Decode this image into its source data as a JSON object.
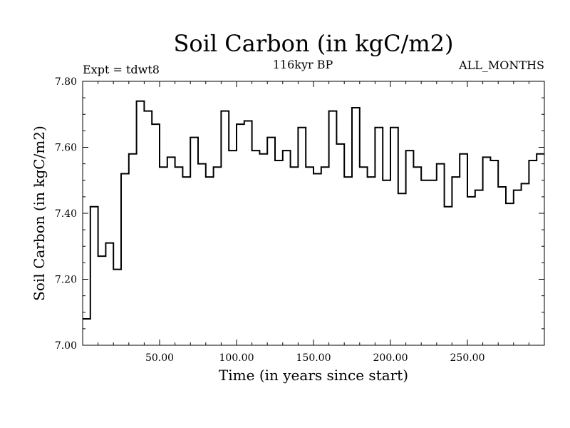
{
  "chart_data": {
    "type": "line",
    "title": "Soil Carbon (in kgC/m2)",
    "subtitle": "116kyr BP",
    "experiment_label": "Expt = tdwt8",
    "months_label": "ALL_MONTHS",
    "xlabel": "Time (in years since start)",
    "ylabel": "Soil Carbon (in kgC/m2)",
    "xlim": [
      0,
      300
    ],
    "ylim": [
      7.0,
      7.8
    ],
    "x_ticks": [
      50,
      100,
      150,
      200,
      250
    ],
    "x_tick_labels": [
      "50.00",
      "100.00",
      "150.00",
      "200.00",
      "250.00"
    ],
    "y_ticks": [
      7.0,
      7.2,
      7.4,
      7.6,
      7.8
    ],
    "y_tick_labels": [
      "7.00",
      "7.20",
      "7.40",
      "7.60",
      "7.80"
    ],
    "series": [
      {
        "name": "Soil Carbon",
        "step_width_years": 5,
        "x_start": 0,
        "values": [
          7.08,
          7.42,
          7.27,
          7.31,
          7.23,
          7.52,
          7.58,
          7.74,
          7.71,
          7.67,
          7.54,
          7.57,
          7.54,
          7.51,
          7.63,
          7.55,
          7.51,
          7.54,
          7.71,
          7.59,
          7.67,
          7.68,
          7.59,
          7.58,
          7.63,
          7.56,
          7.59,
          7.54,
          7.66,
          7.54,
          7.52,
          7.54,
          7.71,
          7.61,
          7.51,
          7.72,
          7.54,
          7.51,
          7.66,
          7.5,
          7.66,
          7.46,
          7.59,
          7.54,
          7.5,
          7.5,
          7.55,
          7.42,
          7.51,
          7.58,
          7.45,
          7.47,
          7.57,
          7.56,
          7.48,
          7.43,
          7.47,
          7.49,
          7.56,
          7.58
        ]
      }
    ]
  }
}
